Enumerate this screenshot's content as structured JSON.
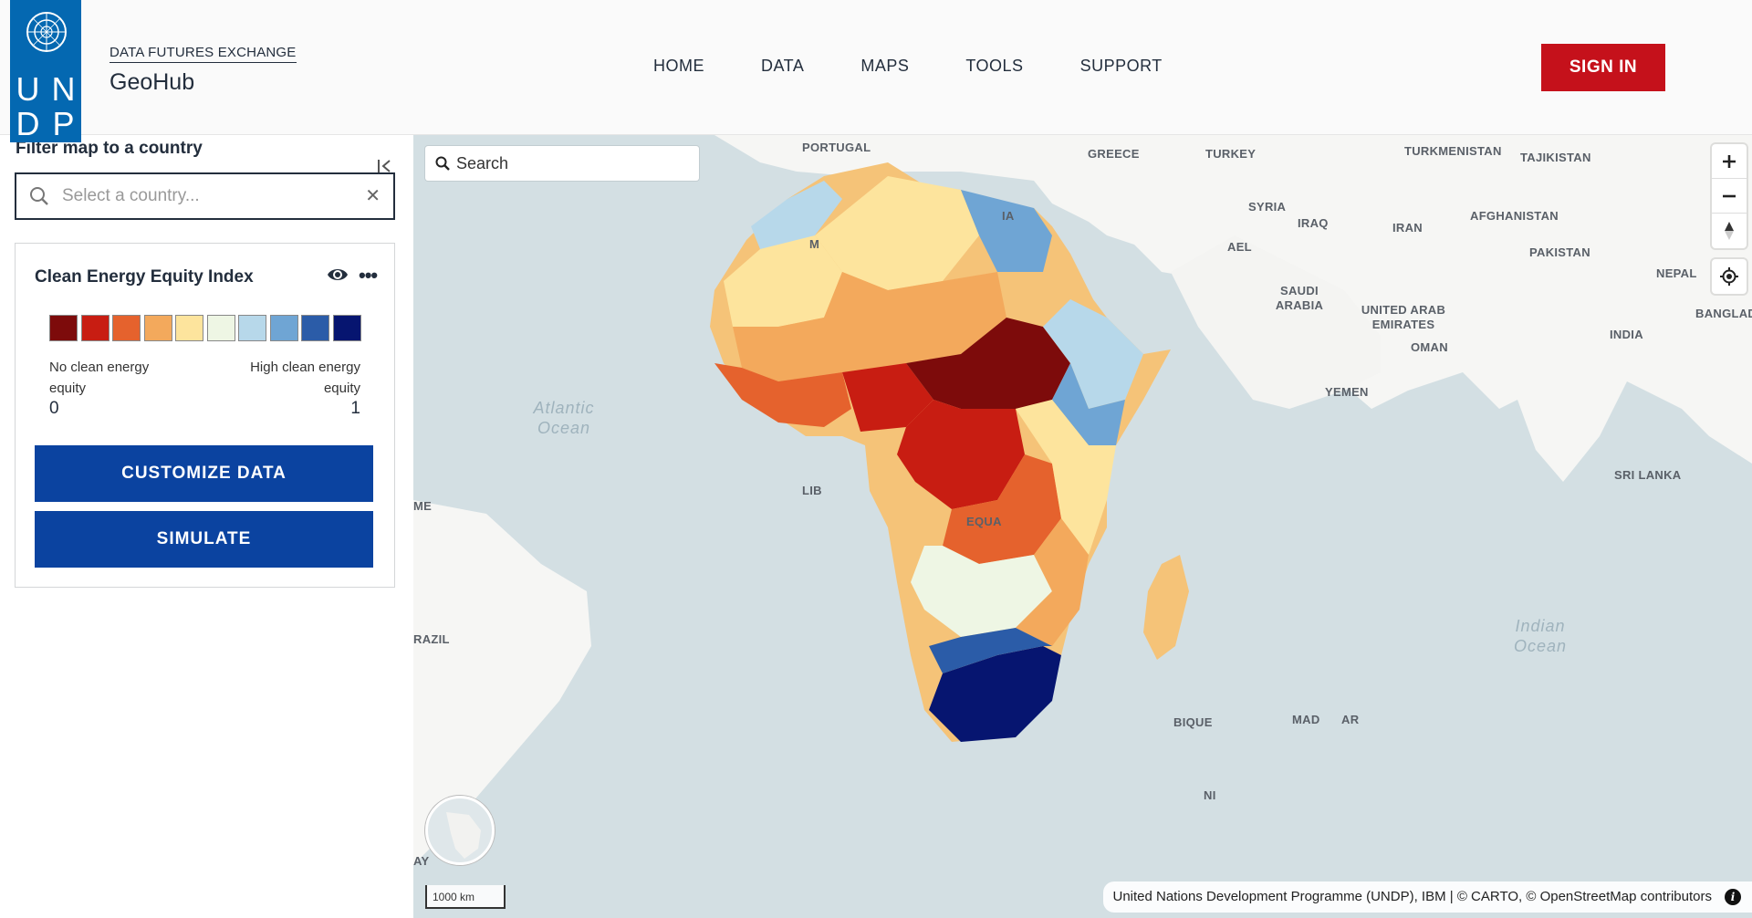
{
  "header": {
    "logo": {
      "letters": [
        "U",
        "N",
        "D",
        "P"
      ]
    },
    "brand_sub": "DATA FUTURES EXCHANGE",
    "brand_title": "GeoHub",
    "nav": [
      "HOME",
      "DATA",
      "MAPS",
      "TOOLS",
      "SUPPORT"
    ],
    "signin_label": "SIGN IN"
  },
  "sidebar": {
    "filter_label": "Filter map to a country",
    "country_placeholder": "Select a country...",
    "layer": {
      "title": "Clean Energy Equity Index",
      "legend_colors": [
        "#7d0b0b",
        "#c81d12",
        "#e5622d",
        "#f3a95c",
        "#fde49d",
        "#eef6e4",
        "#b7d8ea",
        "#6fa5d4",
        "#2b5ca8",
        "#061570"
      ],
      "legend_low_label": "No clean energy equity",
      "legend_high_label": "High clean energy equity",
      "legend_low_value": "0",
      "legend_high_value": "1",
      "customize_label": "CUSTOMIZE DATA",
      "simulate_label": "SIMULATE"
    }
  },
  "map": {
    "search_placeholder": "Search",
    "labels": [
      "PORTUGAL",
      "GREECE",
      "TURKEY",
      "TURKMENISTAN",
      "TAJIKISTAN",
      "SYRIA",
      "IRAQ",
      "IRAN",
      "AFGHANISTAN",
      "PAKISTAN",
      "NEPAL",
      "BANGLAD",
      "SAUDI ARABIA",
      "UNITED ARAB EMIRATES",
      "OMAN",
      "INDIA",
      "YEMEN",
      "SRI LANKA",
      "ME",
      "RAZIL",
      "AY",
      "AEL",
      "EQUA",
      "LIB",
      "BIQUE",
      "MAD",
      "AR",
      "NI",
      "M",
      "IA"
    ],
    "oceans": [
      "Atlantic Ocean",
      "Indian Ocean"
    ],
    "scale_label": "1000 km",
    "attribution": "United Nations Development Programme (UNDP), IBM | © CARTO, © OpenStreetMap contributors"
  }
}
